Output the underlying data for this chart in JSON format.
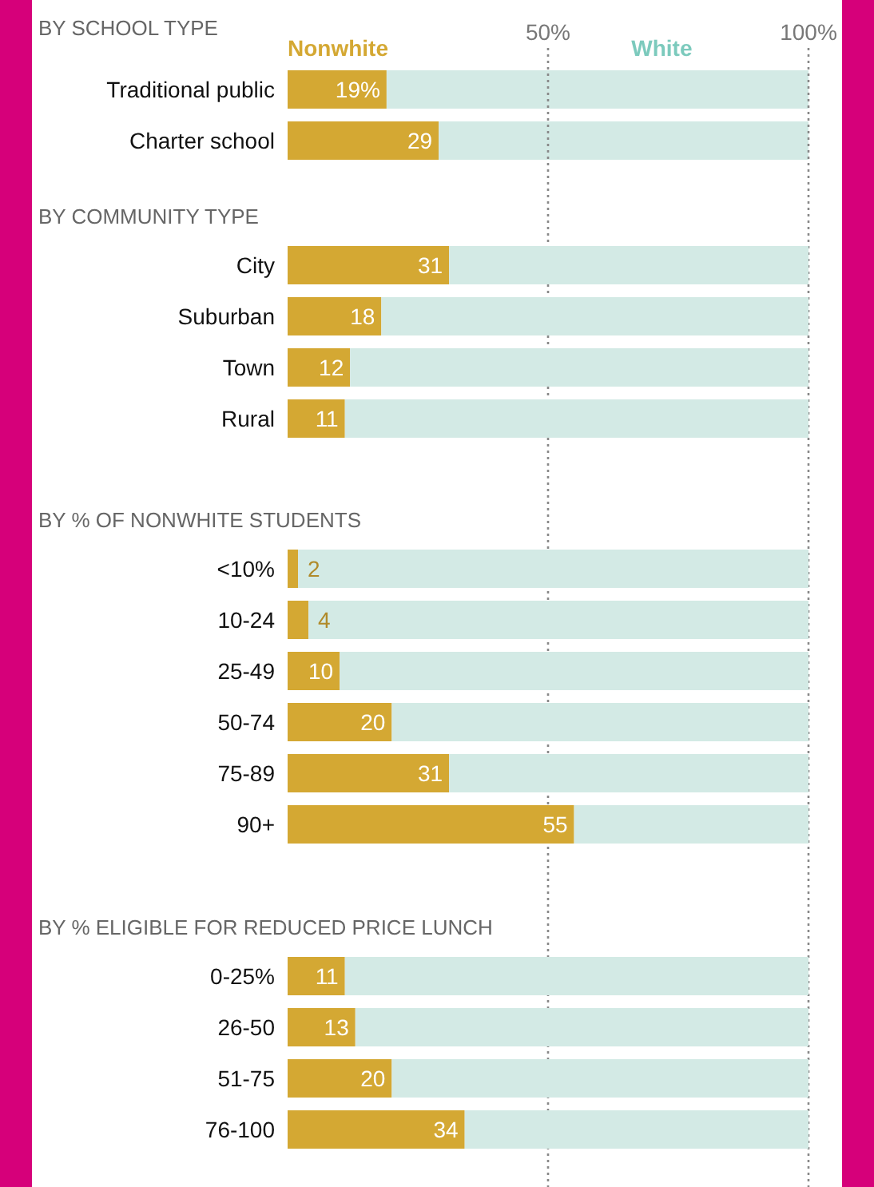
{
  "chart_data": [
    {
      "type": "bar",
      "orientation": "horizontal",
      "stacked": true,
      "title": "BY SCHOOL TYPE",
      "categories": [
        "Traditional public",
        "Charter school"
      ],
      "series": [
        {
          "name": "Nonwhite",
          "color": "#d4a833",
          "values": [
            19,
            29
          ],
          "value_labels": [
            "19%",
            "29"
          ]
        },
        {
          "name": "White",
          "color": "#d3eae5",
          "values": [
            81,
            71
          ]
        }
      ],
      "xlim": [
        0,
        100
      ],
      "xticks": [
        {
          "value": 50,
          "label": "50%"
        },
        {
          "value": 100,
          "label": "100%"
        }
      ],
      "grid": "x",
      "legend": "top"
    },
    {
      "type": "bar",
      "orientation": "horizontal",
      "stacked": true,
      "title": "BY COMMUNITY TYPE",
      "categories": [
        "City",
        "Suburban",
        "Town",
        "Rural"
      ],
      "series": [
        {
          "color": "#d4a833",
          "values": [
            31,
            18,
            12,
            11
          ],
          "value_labels": [
            "31",
            "18",
            "12",
            "11"
          ]
        },
        {
          "color": "#d3eae5",
          "values": [
            69,
            82,
            88,
            89
          ]
        }
      ],
      "xlim": [
        0,
        100
      ],
      "tick_labels": false
    },
    {
      "type": "bar",
      "orientation": "horizontal",
      "stacked": true,
      "title": "BY % OF NONWHITE STUDENTS",
      "categories": [
        "<10%",
        "10-24",
        "25-49",
        "50-74",
        "75-89",
        "90+"
      ],
      "series": [
        {
          "color": "#d4a833",
          "values": [
            2,
            4,
            10,
            20,
            31,
            55
          ],
          "value_labels": [
            "2",
            "4",
            "10",
            "20",
            "31",
            "55"
          ]
        },
        {
          "color": "#d3eae5",
          "values": [
            98,
            96,
            90,
            80,
            69,
            45
          ]
        }
      ],
      "xlim": [
        0,
        100
      ],
      "tick_labels": false
    },
    {
      "type": "bar",
      "orientation": "horizontal",
      "stacked": true,
      "title": "BY % ELIGIBLE FOR REDUCED PRICE LUNCH",
      "categories": [
        "0-25%",
        "26-50",
        "51-75",
        "76-100"
      ],
      "series": [
        {
          "color": "#d4a833",
          "values": [
            11,
            13,
            20,
            34
          ],
          "value_labels": [
            "11",
            "13",
            "20",
            "34"
          ]
        },
        {
          "color": "#d3eae5",
          "values": [
            89,
            87,
            80,
            66
          ]
        }
      ],
      "xlim": [
        0,
        100
      ],
      "tick_labels": false
    }
  ]
}
